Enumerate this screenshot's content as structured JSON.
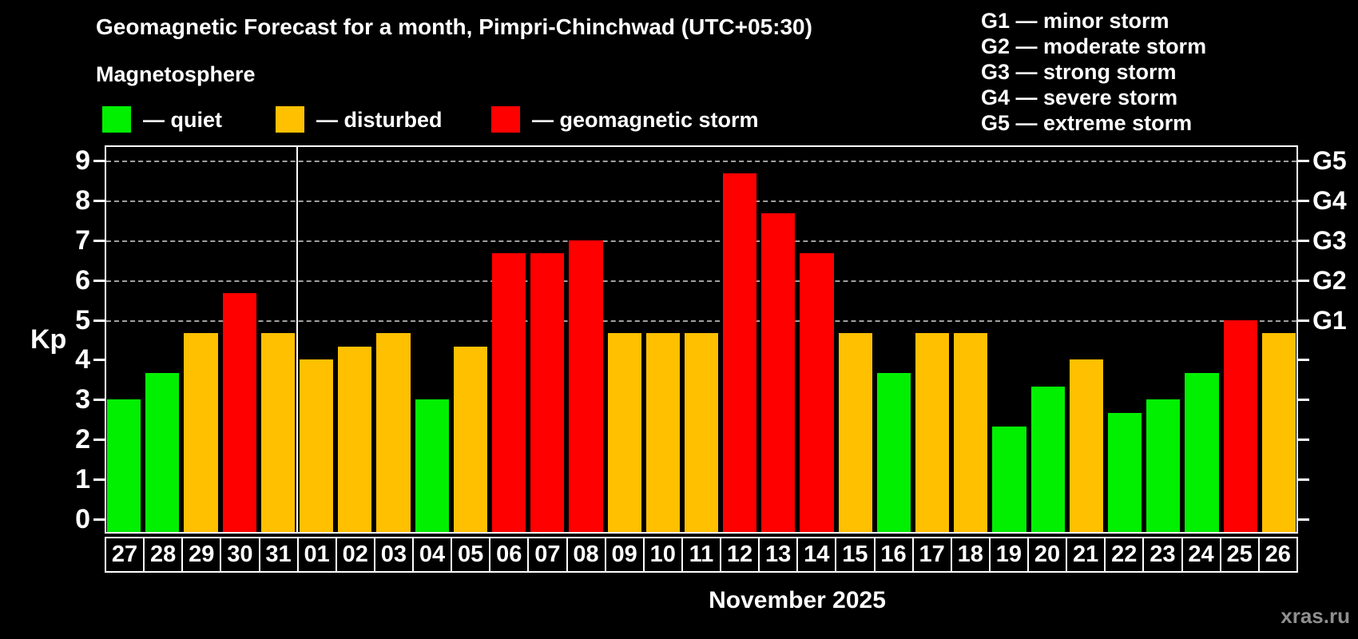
{
  "header": {
    "title": "Geomagnetic Forecast for a month, Pimpri-Chinchwad (UTC+05:30)",
    "subtitle": "Magnetosphere"
  },
  "legend": {
    "quiet": "— quiet",
    "disturbed": "— disturbed",
    "storm": "— geomagnetic storm"
  },
  "g_legend": [
    "G1 — minor storm",
    "G2 — moderate storm",
    "G3 — strong storm",
    "G4 — severe storm",
    "G5 — extreme storm"
  ],
  "axes": {
    "y_label": "Kp",
    "y_ticks": [
      0,
      1,
      2,
      3,
      4,
      5,
      6,
      7,
      8,
      9
    ],
    "right_labels": [
      {
        "kp": 5,
        "label": "G1"
      },
      {
        "kp": 6,
        "label": "G2"
      },
      {
        "kp": 7,
        "label": "G3"
      },
      {
        "kp": 8,
        "label": "G4"
      },
      {
        "kp": 9,
        "label": "G5"
      }
    ]
  },
  "footer": {
    "x_axis_title": "November 2025",
    "watermark": "xras.ru"
  },
  "colors": {
    "quiet": "#00f000",
    "disturbed": "#ffc000",
    "storm": "#ff0000",
    "grid": "#a0a0a0",
    "axis": "#ffffff",
    "background": "#000000",
    "watermark": "#8f8f8f"
  },
  "chart_data": {
    "type": "bar",
    "title": "Geomagnetic Forecast for a month, Pimpri-Chinchwad (UTC+05:30)",
    "xlabel": "November 2025",
    "ylabel": "Kp",
    "ylim": [
      0,
      9
    ],
    "grid_levels": [
      5,
      6,
      7,
      8,
      9
    ],
    "grid_on": true,
    "legend_position": "top-left",
    "month_separator_after": "31",
    "categories": [
      "27",
      "28",
      "29",
      "30",
      "31",
      "01",
      "02",
      "03",
      "04",
      "05",
      "06",
      "07",
      "08",
      "09",
      "10",
      "11",
      "12",
      "13",
      "14",
      "15",
      "16",
      "17",
      "18",
      "19",
      "20",
      "21",
      "22",
      "23",
      "24",
      "25",
      "26"
    ],
    "values": [
      3,
      3.67,
      4.67,
      5.67,
      4.67,
      4,
      4.33,
      4.67,
      3,
      4.33,
      6.67,
      6.67,
      7,
      4.67,
      4.67,
      4.67,
      8.67,
      7.67,
      6.67,
      4.67,
      3.67,
      4.67,
      4.67,
      2.33,
      3.33,
      4,
      2.67,
      3,
      3.67,
      5,
      4.67
    ],
    "status": [
      "quiet",
      "quiet",
      "disturbed",
      "storm",
      "disturbed",
      "disturbed",
      "disturbed",
      "disturbed",
      "quiet",
      "disturbed",
      "storm",
      "storm",
      "storm",
      "disturbed",
      "disturbed",
      "disturbed",
      "storm",
      "storm",
      "storm",
      "disturbed",
      "quiet",
      "disturbed",
      "disturbed",
      "quiet",
      "quiet",
      "disturbed",
      "quiet",
      "quiet",
      "quiet",
      "storm",
      "disturbed"
    ]
  }
}
